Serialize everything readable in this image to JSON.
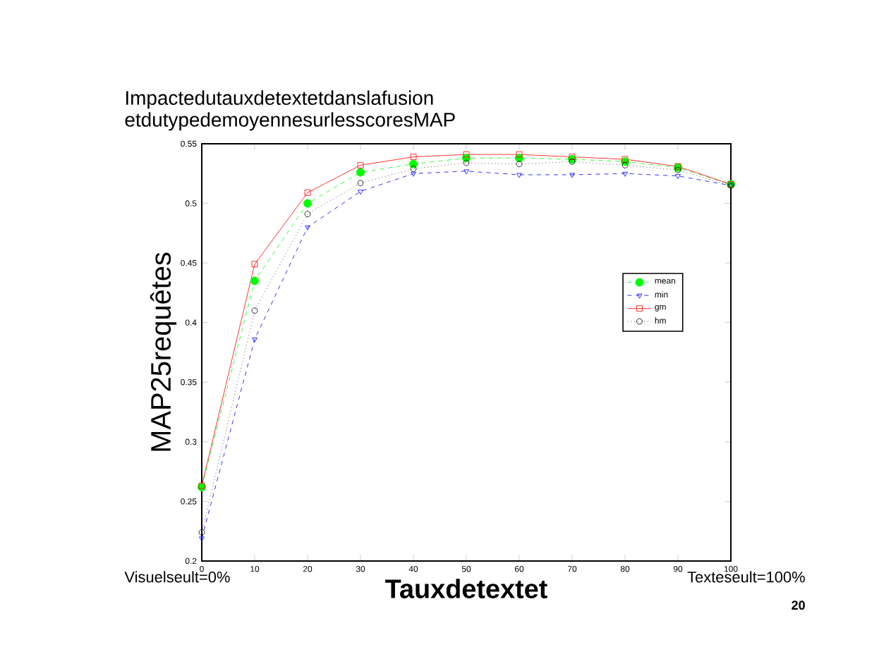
{
  "chart_data": {
    "type": "line",
    "title": "Impactedutauxdetextetdanslafusion etdutypedemoyennesurlesscoresMAP",
    "xlabel": "Tauxdetextet",
    "ylabel": "MAP25requêtes",
    "x": [
      0,
      10,
      20,
      30,
      40,
      50,
      60,
      70,
      80,
      90,
      100
    ],
    "series": [
      {
        "name": "mean",
        "color": "#00ff00",
        "line_style": "dashed",
        "marker": "circle",
        "values": [
          0.262,
          0.435,
          0.5,
          0.526,
          0.533,
          0.538,
          0.538,
          0.537,
          0.535,
          0.53,
          0.516
        ]
      },
      {
        "name": "min",
        "color": "#0000ff",
        "line_style": "dashed",
        "marker": "triangle",
        "values": [
          0.219,
          0.386,
          0.48,
          0.51,
          0.525,
          0.527,
          0.524,
          0.524,
          0.525,
          0.523,
          0.515
        ]
      },
      {
        "name": "gm",
        "color": "#ff0000",
        "line_style": "solid",
        "marker": "square",
        "values": [
          0.263,
          0.449,
          0.509,
          0.532,
          0.539,
          0.541,
          0.541,
          0.539,
          0.537,
          0.531,
          0.516
        ]
      },
      {
        "name": "hm",
        "color": "#000000",
        "line_style": "dotted",
        "marker": "circle",
        "values": [
          0.224,
          0.41,
          0.491,
          0.517,
          0.529,
          0.534,
          0.533,
          0.535,
          0.532,
          0.528,
          0.515
        ]
      }
    ],
    "xlim": [
      0,
      100
    ],
    "ylim": [
      0.2,
      0.55
    ],
    "xticks": [
      0,
      10,
      20,
      30,
      40,
      50,
      60,
      70,
      80,
      90,
      100
    ],
    "yticks": [
      0.2,
      0.25,
      0.3,
      0.35,
      0.4,
      0.45,
      0.5,
      0.55
    ],
    "grid": false,
    "legend": "right",
    "annotations": [
      "Visuelseult=0%",
      "Texteseult=100%",
      "20"
    ]
  }
}
